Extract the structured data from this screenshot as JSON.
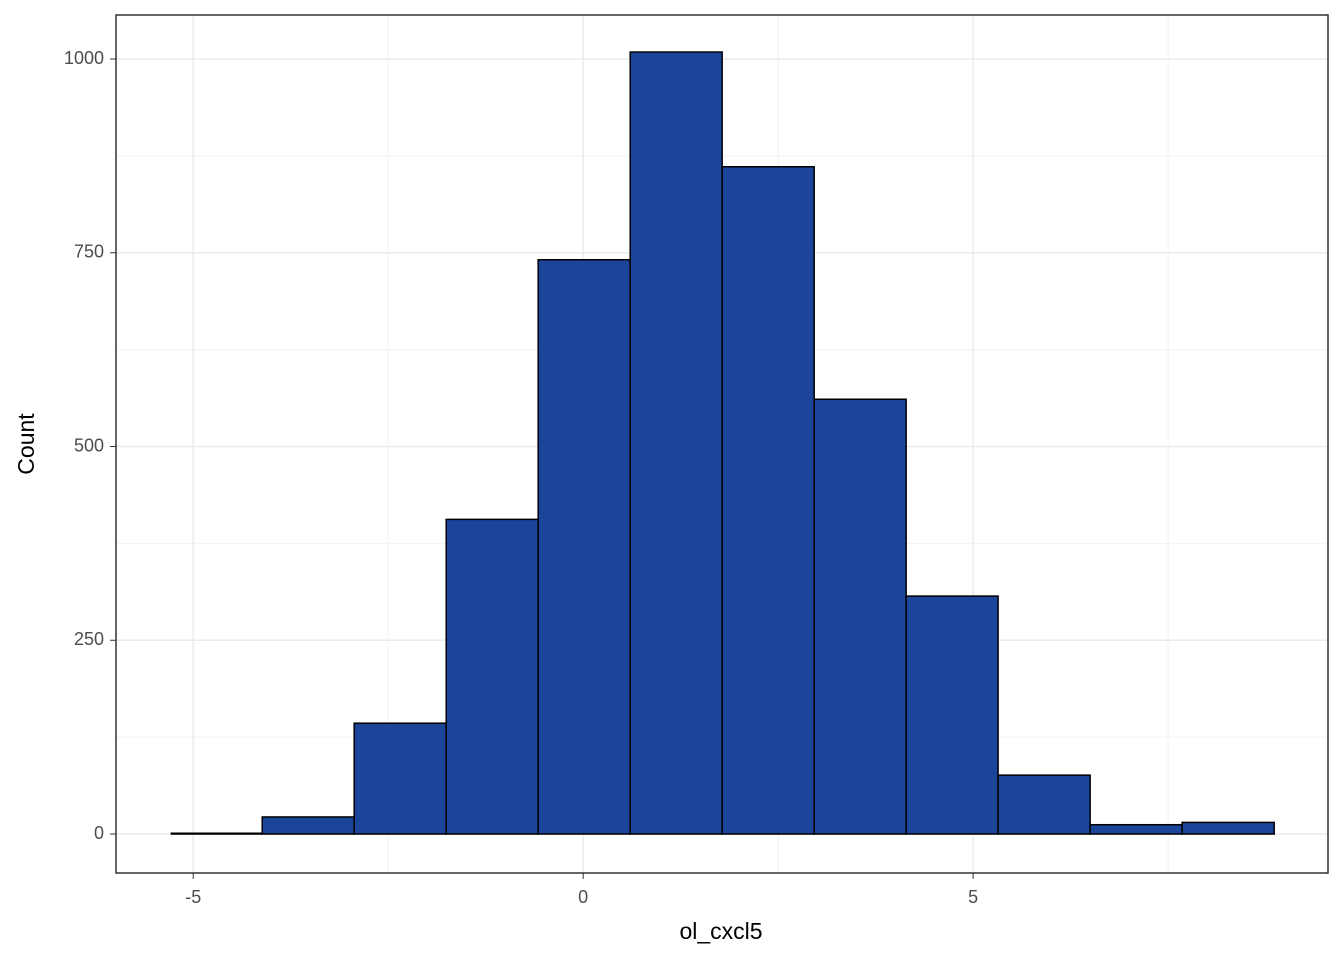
{
  "chart_data": {
    "type": "histogram",
    "xlabel": "ol_cxcl5",
    "ylabel": "Count",
    "bins": [
      -5.28,
      -4.115,
      -2.936,
      -1.756,
      -0.577,
      0.603,
      1.782,
      2.962,
      4.141,
      5.32,
      6.5,
      7.68,
      8.86
    ],
    "values": [
      1,
      22,
      143,
      406,
      741,
      1009,
      861,
      561,
      307,
      76,
      12,
      15
    ],
    "color": "#1a4599",
    "edgecolor": "#000000",
    "xlim": [
      -5.99,
      9.55
    ],
    "ylim": [
      -50.3,
      1056.8
    ],
    "xticks": [
      -5,
      0,
      5
    ],
    "yticks": [
      0,
      250,
      500,
      750,
      1000
    ],
    "x_minor_grid": [
      -2.5,
      2.5,
      7.5
    ],
    "y_minor_grid": [
      125,
      375,
      625,
      875
    ],
    "grid": true
  }
}
